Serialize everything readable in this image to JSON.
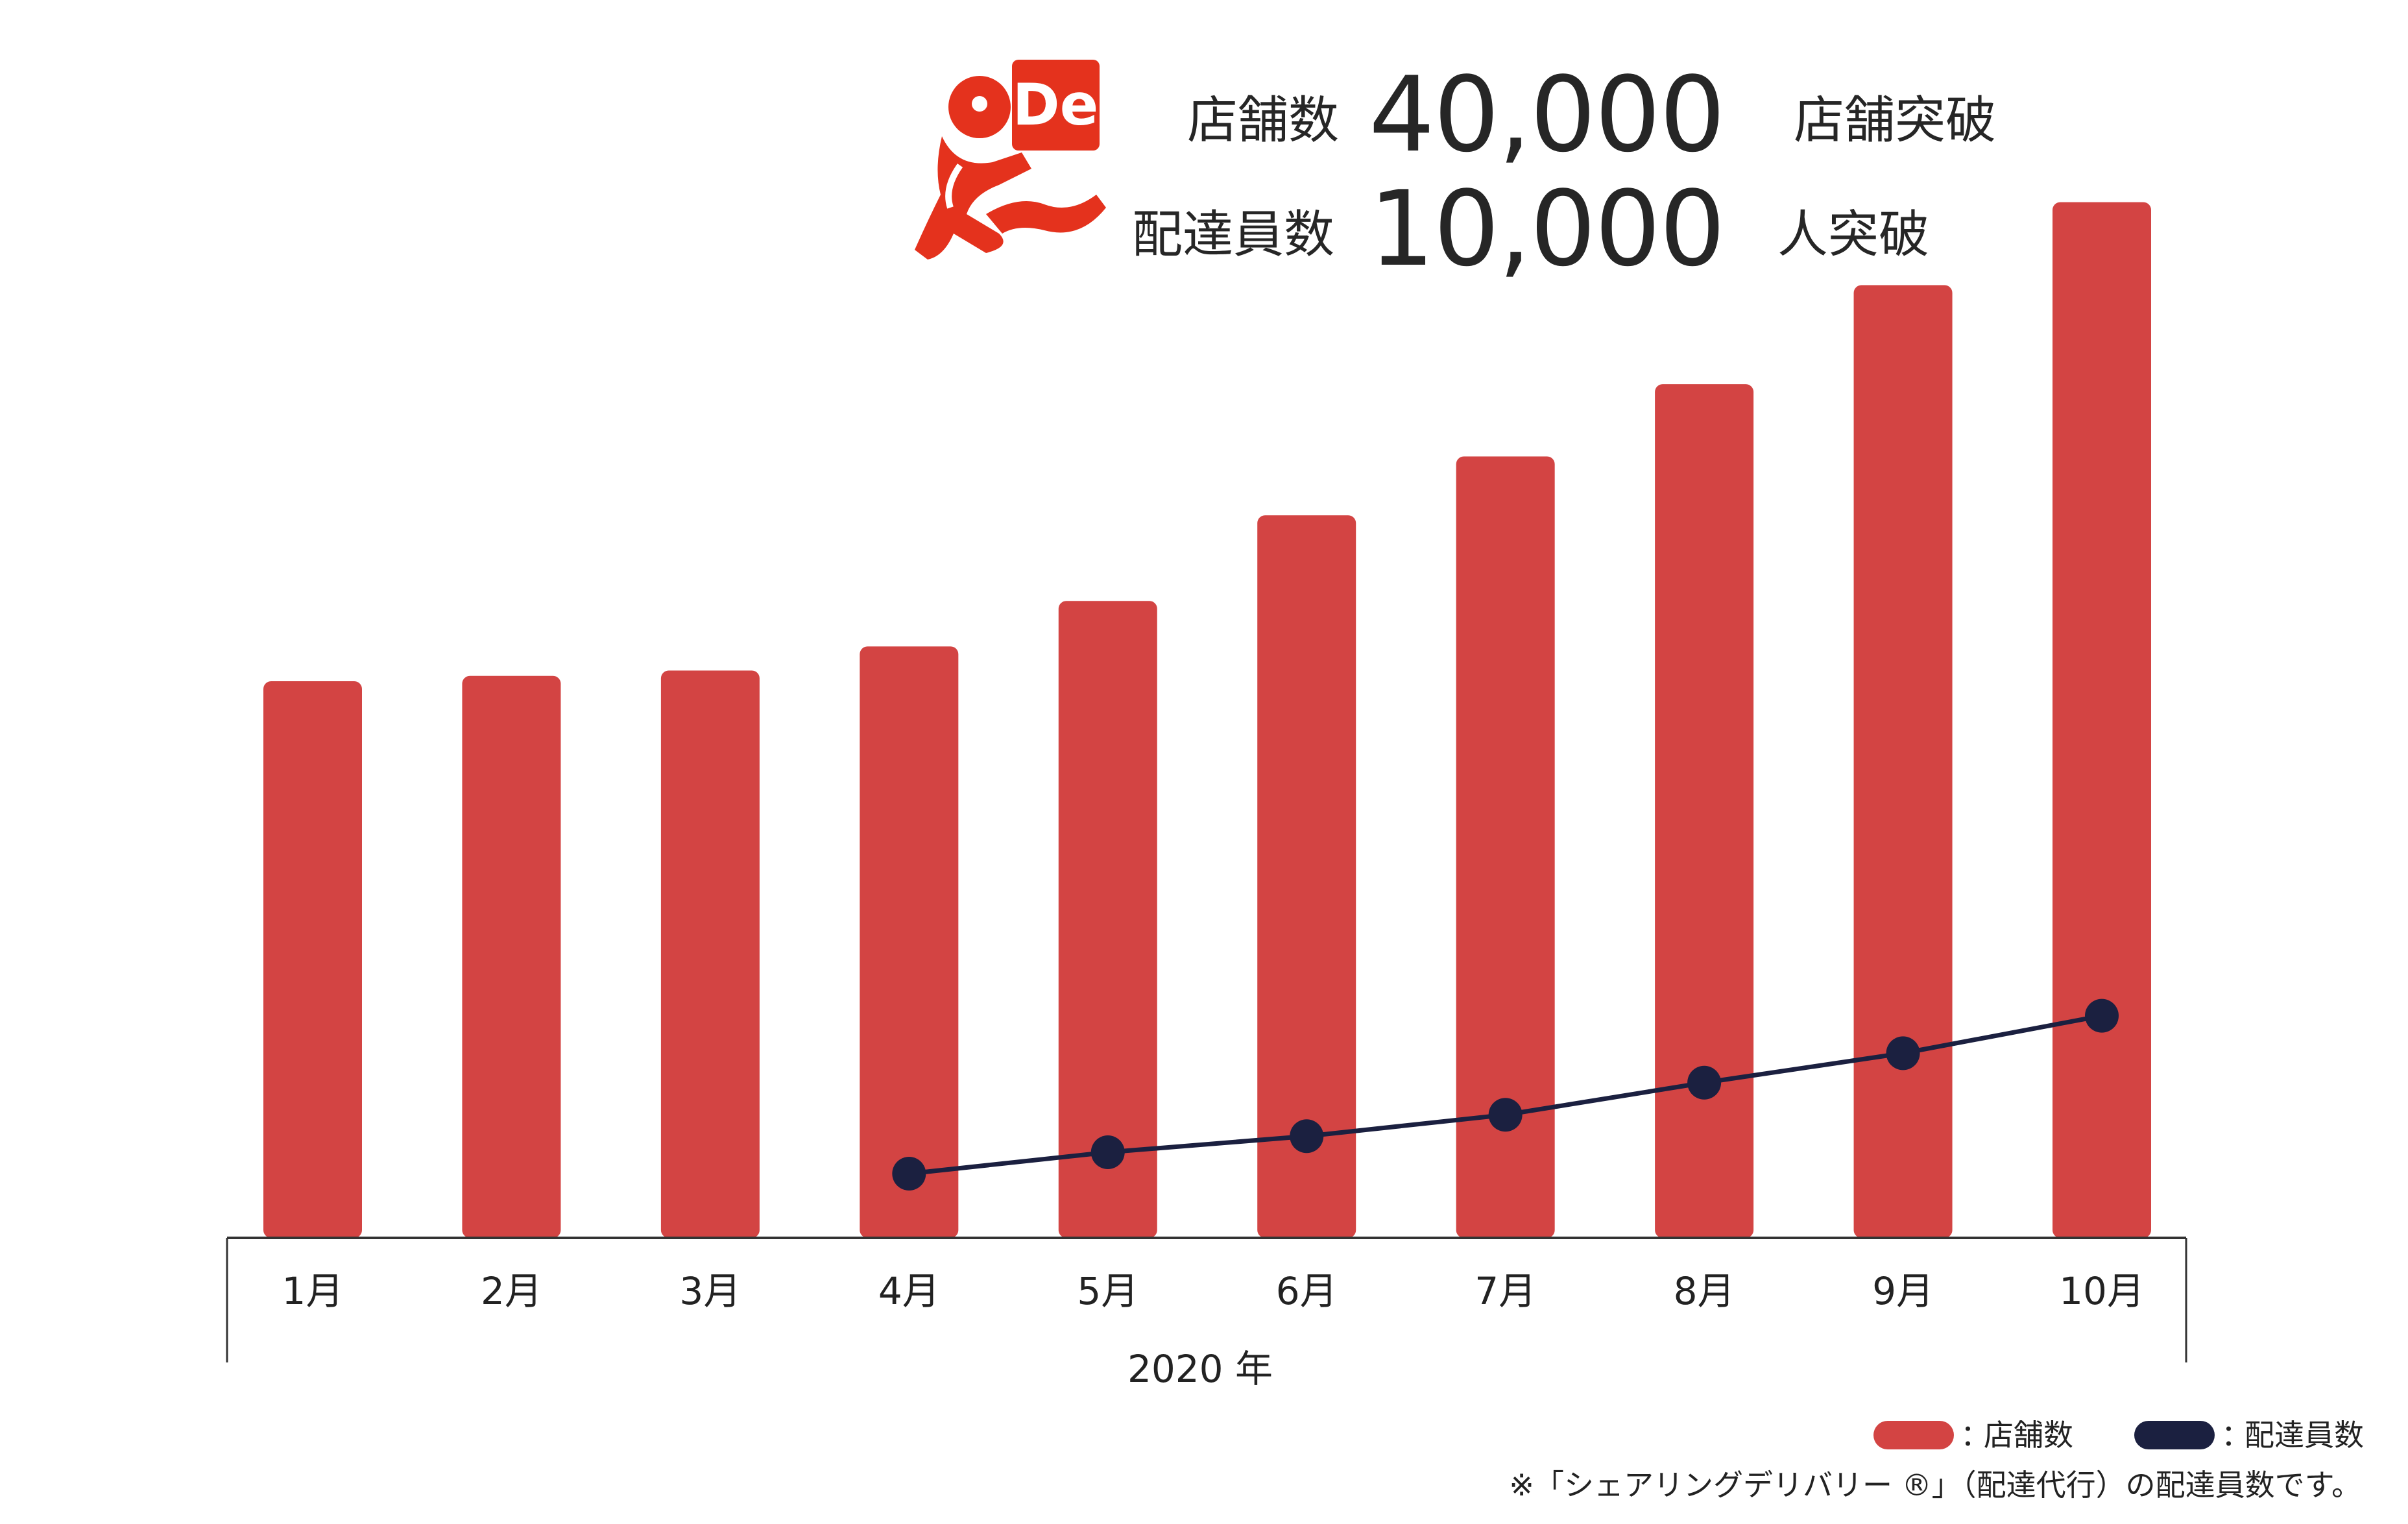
{
  "headline": {
    "line1": {
      "prefix": "店舗数",
      "number": "40,000",
      "suffix": "店舗突破"
    },
    "line2": {
      "prefix": "配達員数",
      "number": "10,000",
      "suffix": "人突破"
    },
    "logo": {
      "text": "De",
      "icon": "delivery-runner-logo-icon",
      "color": "#e4321d"
    }
  },
  "chart_data": {
    "type": "bar",
    "categories": [
      "1月",
      "2月",
      "3月",
      "4月",
      "5月",
      "6月",
      "7月",
      "8月",
      "9月",
      "10月"
    ],
    "series": [
      {
        "name": "店舗数",
        "type": "bar",
        "color": "#d34443",
        "values": [
          20800,
          21000,
          21200,
          22100,
          23800,
          27000,
          29200,
          31900,
          35600,
          38700
        ]
      },
      {
        "name": "配達員数",
        "type": "line",
        "color": "#1b2040",
        "values": [
          null,
          null,
          null,
          2400,
          3200,
          3800,
          4600,
          5800,
          6900,
          8300
        ]
      }
    ],
    "xlabel": "2020 年",
    "ylim": [
      0,
      40000
    ],
    "grid": false,
    "legend_position": "bottom-right"
  },
  "legend": {
    "separator": "：",
    "items": [
      {
        "label": "店舗数",
        "color": "#d34443"
      },
      {
        "label": "配達員数",
        "color": "#1b2040"
      }
    ]
  },
  "footnote": "※「シェアリングデリバリー ®」（配達代行）の配達員数です。"
}
